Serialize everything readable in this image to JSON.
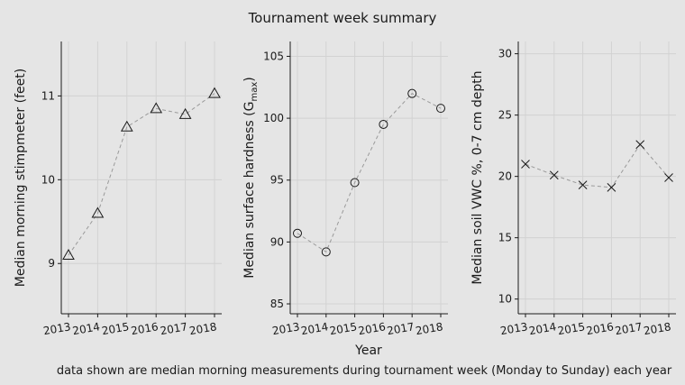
{
  "figure": {
    "title": "Tournament week summary",
    "xlabel": "Year",
    "caption": "data shown are median morning measurements during tournament week (Monday to Sunday) each year"
  },
  "chart_data": [
    {
      "type": "line",
      "marker": "triangle",
      "ylabel": "Median morning stimpmeter (feet)",
      "ylabel_parts": [
        "Median morning stimpmeter (feet)"
      ],
      "categories": [
        "2013",
        "2014",
        "2015",
        "2016",
        "2017",
        "2018"
      ],
      "values": [
        9.1,
        9.6,
        10.63,
        10.85,
        10.78,
        11.03
      ],
      "ylim": [
        8.4,
        11.65
      ],
      "yticks": [
        9,
        10,
        11
      ],
      "ytick_labels": [
        "9",
        "10",
        "11"
      ],
      "grid": true
    },
    {
      "type": "line",
      "marker": "circle",
      "ylabel": "Median surface hardness (Gmax)",
      "ylabel_parts": [
        "Median surface hardness (G",
        "max",
        ")"
      ],
      "categories": [
        "2013",
        "2014",
        "2015",
        "2016",
        "2017",
        "2018"
      ],
      "values": [
        90.7,
        89.2,
        94.8,
        99.5,
        102.0,
        100.8
      ],
      "ylim": [
        84.2,
        106.2
      ],
      "yticks": [
        85,
        90,
        95,
        100,
        105
      ],
      "ytick_labels": [
        "85",
        "90",
        "95",
        "100",
        "105"
      ],
      "grid": true
    },
    {
      "type": "line",
      "marker": "x",
      "ylabel": "Median soil VWC %, 0-7 cm depth",
      "ylabel_parts": [
        "Median soil VWC %, 0-7 cm depth"
      ],
      "categories": [
        "2013",
        "2014",
        "2015",
        "2016",
        "2017",
        "2018"
      ],
      "values": [
        21.0,
        20.1,
        19.3,
        19.1,
        22.6,
        19.9
      ],
      "ylim": [
        8.8,
        31.0
      ],
      "yticks": [
        10,
        15,
        20,
        25,
        30
      ],
      "ytick_labels": [
        "10",
        "15",
        "20",
        "25",
        "30"
      ],
      "grid": true
    }
  ]
}
